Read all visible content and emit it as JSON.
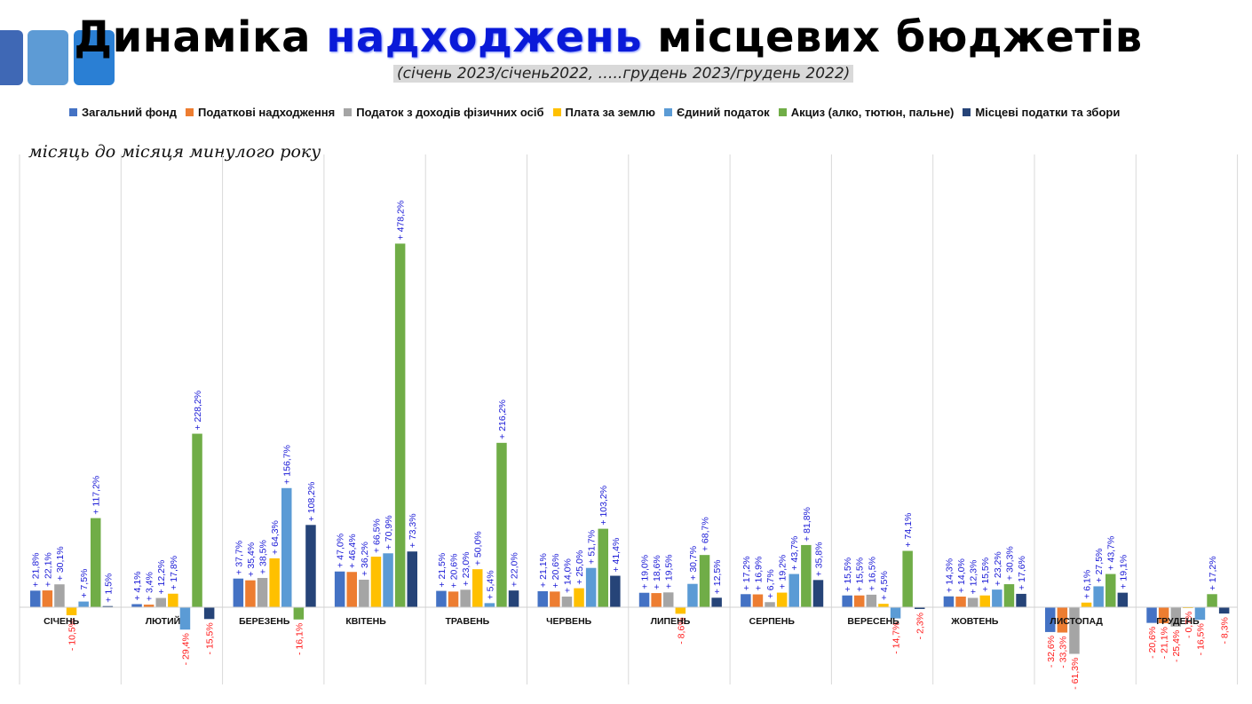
{
  "title": {
    "part1": "Динаміка ",
    "highlight": "надходжень",
    "part2": " місцевих бюджетів"
  },
  "subtitle": "(січень 2023/січень2022, …..грудень 2023/грудень 2022)",
  "note": "місяць до місяця минулого року",
  "chart_data": {
    "type": "bar",
    "title": "Динаміка надходжень місцевих бюджетів",
    "subtitle": "(січень 2023/січень2022, …..грудень 2023/грудень 2022)",
    "annotation": "місяць до місяця минулого року",
    "unit": "%",
    "categories": [
      "СІЧЕНЬ",
      "ЛЮТИЙ",
      "БЕРЕЗЕНЬ",
      "КВІТЕНЬ",
      "ТРАВЕНЬ",
      "ЧЕРВЕНЬ",
      "ЛИПЕНЬ",
      "СЕРПЕНЬ",
      "ВЕРЕСЕНЬ",
      "ЖОВТЕНЬ",
      "ЛИСТОПАД",
      "ГРУДЕНЬ"
    ],
    "legend_position": "top",
    "grid": "vertical separators between months",
    "series": [
      {
        "name": "Загальний фонд",
        "color": "#4472c4",
        "values": [
          21.8,
          4.1,
          37.7,
          47.0,
          21.5,
          21.1,
          19.0,
          17.2,
          15.5,
          14.3,
          -32.6,
          -20.6
        ]
      },
      {
        "name": "Податкові надходження",
        "color": "#ed7d31",
        "values": [
          22.1,
          3.4,
          35.4,
          46.4,
          20.6,
          20.6,
          18.6,
          16.9,
          15.5,
          14.0,
          -33.3,
          -21.1
        ]
      },
      {
        "name": "Податок з доходів фізичних осіб",
        "color": "#a5a5a5",
        "values": [
          30.1,
          12.2,
          38.5,
          36.2,
          23.0,
          14.0,
          19.5,
          6.7,
          16.5,
          12.3,
          -61.3,
          -25.4
        ]
      },
      {
        "name": "Плата за землю",
        "color": "#ffc000",
        "values": [
          -10.5,
          17.8,
          64.3,
          66.5,
          50.0,
          25.0,
          -8.6,
          19.2,
          4.5,
          15.5,
          6.1,
          -0.7
        ]
      },
      {
        "name": "Єдиний податок",
        "color": "#5b9bd5",
        "values": [
          7.5,
          -29.4,
          156.7,
          70.9,
          5.4,
          51.7,
          30.7,
          43.7,
          -14.7,
          23.2,
          27.5,
          -16.5
        ]
      },
      {
        "name": "Акциз (алко, тютюн, пальне)",
        "color": "#70ad47",
        "values": [
          117.2,
          228.2,
          -16.1,
          478.2,
          216.2,
          103.2,
          68.7,
          81.8,
          74.1,
          30.3,
          43.7,
          17.2
        ]
      },
      {
        "name": "Місцеві податки та збори",
        "color": "#264478",
        "values": [
          1.5,
          -15.5,
          108.2,
          73.3,
          22.0,
          41.4,
          12.5,
          35.8,
          -2.3,
          17.6,
          19.1,
          -8.3
        ]
      }
    ],
    "labels": [
      [
        "+ 21,8%",
        "+ 22,1%",
        "+ 30,1%",
        "- 10,5%",
        "+ 7,5%",
        "+ 117,2%",
        "+ 1,5%"
      ],
      [
        "+ 4,1%",
        "+ 3,4%",
        "+ 12,2%",
        "+ 17,8%",
        "- 29,4%",
        "+ 228,2%",
        "- 15,5%"
      ],
      [
        "+ 37,7%",
        "+ 35,4%",
        "+ 38,5%",
        "+ 64,3%",
        "+ 156,7%",
        "- 16,1%",
        "+ 108,2%"
      ],
      [
        "+ 47,0%",
        "+ 46,4%",
        "+ 36,2%",
        "+ 66,5%",
        "+ 70,9%",
        "+ 478,2%",
        "+ 73,3%"
      ],
      [
        "+ 21,5%",
        "+ 20,6%",
        "+ 23,0%",
        "+ 50,0%",
        "+ 5,4%",
        "+ 216,2%",
        "+ 22,0%"
      ],
      [
        "+ 21,1%",
        "+ 20,6%",
        "+ 14,0%",
        "+ 25,0%",
        "+ 51,7%",
        "+ 103,2%",
        "+ 41,4%"
      ],
      [
        "+ 19,0%",
        "+ 18,6%",
        "+ 19,5%",
        "- 8,6%",
        "+ 30,7%",
        "+ 68,7%",
        "+ 12,5%"
      ],
      [
        "+ 17,2%",
        "+ 16,9%",
        "+ 6,7%",
        "+ 19,2%",
        "+ 43,7%",
        "+ 81,8%",
        "+ 35,8%"
      ],
      [
        "+ 15,5%",
        "+ 15,5%",
        "+ 16,5%",
        "+ 4,5%",
        "- 14,7%",
        "+ 74,1%",
        "- 2,3%"
      ],
      [
        "+ 14,3%",
        "+ 14,0%",
        "+ 12,3%",
        "+ 15,5%",
        "+ 23,2%",
        "+ 30,3%",
        "+ 17,6%"
      ],
      [
        "- 32,6%",
        "- 33,3%",
        "- 61,3%",
        "+ 6,1%",
        "+ 27,5%",
        "+ 43,7%",
        "+ 19,1%"
      ],
      [
        "- 20,6%",
        "- 21,1%",
        "- 25,4%",
        "- 0,7%",
        "- 16,5%",
        "+ 17,2%",
        "- 8,3%"
      ]
    ],
    "label_colors": {
      "positive": "#1a1ad6",
      "negative": "#ff1a1a"
    }
  }
}
